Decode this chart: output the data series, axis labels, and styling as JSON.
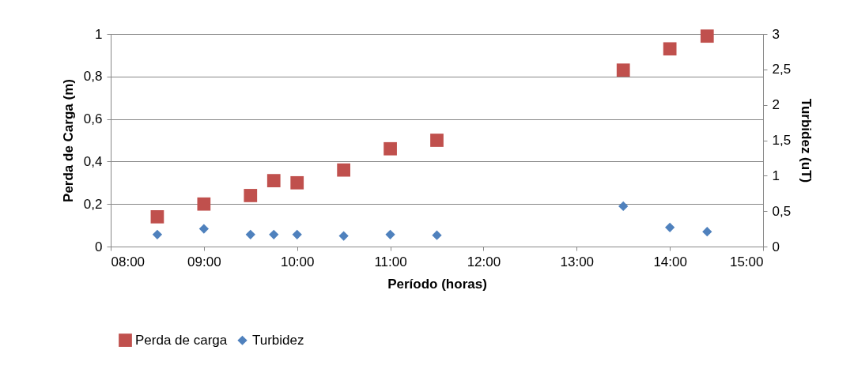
{
  "chart_data": {
    "type": "scatter",
    "xlabel": "Período (horas)",
    "ylabel": "Perda de Carga (m)",
    "y2label": "Turbidez (uT)",
    "x": [
      8.5,
      9,
      9.5,
      9.75,
      10,
      10.5,
      11,
      11.5,
      13.5,
      14,
      14.4
    ],
    "series": [
      {
        "name": "Perda de carga",
        "color": "#c0504d",
        "marker": "square",
        "values": [
          0.14,
          0.2,
          0.24,
          0.31,
          0.3,
          0.36,
          0.46,
          0.5,
          0.83,
          0.93,
          0.99
        ]
      },
      {
        "name": "Turbidez",
        "color": "#4f81bd",
        "marker": "diamond",
        "axis": "y2",
        "values": [
          0.17,
          0.25,
          0.17,
          0.17,
          0.17,
          0.15,
          0.17,
          0.16,
          0.57,
          0.27,
          0.21
        ]
      }
    ],
    "xlim": [
      8,
      15
    ],
    "xticks": [
      {
        "value": 8,
        "label": "08:00"
      },
      {
        "value": 9,
        "label": "09:00"
      },
      {
        "value": 10,
        "label": "10:00"
      },
      {
        "value": 11,
        "label": "11:00"
      },
      {
        "value": 12,
        "label": "12:00"
      },
      {
        "value": 13,
        "label": "13:00"
      },
      {
        "value": 14,
        "label": "14:00"
      },
      {
        "value": 15,
        "label": "15:00"
      }
    ],
    "ylim": [
      0,
      1
    ],
    "yticks": [
      0,
      {
        "value": 0.2,
        "label": "0,2"
      },
      {
        "value": 0.4,
        "label": "0,4"
      },
      {
        "value": 0.6,
        "label": "0,6"
      },
      {
        "value": 0.8,
        "label": "0,8"
      },
      1
    ],
    "y2lim": [
      0,
      3
    ],
    "y2ticks": [
      0,
      {
        "value": 0.5,
        "label": "0,5"
      },
      1,
      {
        "value": 1.5,
        "label": "1,5"
      },
      2,
      {
        "value": 2.5,
        "label": "2,5"
      },
      3
    ],
    "grid": "y",
    "legend": "bottom"
  }
}
